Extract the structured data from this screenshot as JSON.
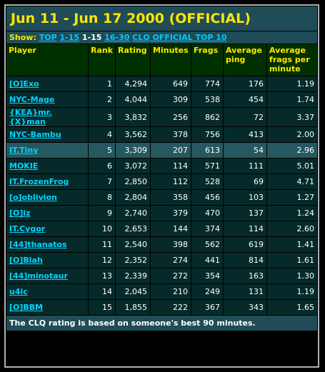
{
  "title": "Jun 11 - Jun 17 2000 (OFFICIAL)",
  "show": {
    "label": "Show:",
    "links": [
      "TOP",
      "1-15",
      "1-15",
      "16-30",
      "CLQ OFFICIAL TOP 10"
    ]
  },
  "columns": [
    "Player",
    "Rank",
    "Rating",
    "Minutes",
    "Frags",
    "Average ping",
    "Average frags per minute"
  ],
  "rows": [
    {
      "player": "[O]Exo",
      "rank": "1",
      "rating": "4,294",
      "minutes": "649",
      "frags": "774",
      "ping": "176",
      "fpm": "1.19"
    },
    {
      "player": "NYC-Mage",
      "rank": "2",
      "rating": "4,044",
      "minutes": "309",
      "frags": "538",
      "ping": "454",
      "fpm": "1.74"
    },
    {
      "player": "{KEA}mr.{X}man",
      "rank": "3",
      "rating": "3,832",
      "minutes": "256",
      "frags": "862",
      "ping": "72",
      "fpm": "3.37"
    },
    {
      "player": "NYC-Bambu",
      "rank": "4",
      "rating": "3,562",
      "minutes": "378",
      "frags": "756",
      "ping": "413",
      "fpm": "2.00"
    },
    {
      "player": "IT.Tiny",
      "rank": "5",
      "rating": "3,309",
      "minutes": "207",
      "frags": "613",
      "ping": "54",
      "fpm": "2.96"
    },
    {
      "player": "MOKIE",
      "rank": "6",
      "rating": "3,072",
      "minutes": "114",
      "frags": "571",
      "ping": "111",
      "fpm": "5.01"
    },
    {
      "player": "IT.FrozenFrog",
      "rank": "7",
      "rating": "2,850",
      "minutes": "112",
      "frags": "528",
      "ping": "69",
      "fpm": "4.71"
    },
    {
      "player": "[o]oblivion",
      "rank": "8",
      "rating": "2,804",
      "minutes": "358",
      "frags": "456",
      "ping": "103",
      "fpm": "1.27"
    },
    {
      "player": "[O]iz",
      "rank": "9",
      "rating": "2,740",
      "minutes": "379",
      "frags": "470",
      "ping": "137",
      "fpm": "1.24"
    },
    {
      "player": "IT.Cygor",
      "rank": "10",
      "rating": "2,653",
      "minutes": "144",
      "frags": "374",
      "ping": "114",
      "fpm": "2.60"
    },
    {
      "player": "[44]thanatos",
      "rank": "11",
      "rating": "2,540",
      "minutes": "398",
      "frags": "562",
      "ping": "619",
      "fpm": "1.41"
    },
    {
      "player": "[O]Blah",
      "rank": "12",
      "rating": "2,352",
      "minutes": "274",
      "frags": "441",
      "ping": "814",
      "fpm": "1.61"
    },
    {
      "player": "[44]minotaur",
      "rank": "13",
      "rating": "2,339",
      "minutes": "272",
      "frags": "354",
      "ping": "163",
      "fpm": "1.30"
    },
    {
      "player": "u4ic",
      "rank": "14",
      "rating": "2,045",
      "minutes": "210",
      "frags": "249",
      "ping": "131",
      "fpm": "1.19"
    },
    {
      "player": "[O]BBM",
      "rank": "15",
      "rating": "1,855",
      "minutes": "222",
      "frags": "367",
      "ping": "343",
      "fpm": "1.65"
    }
  ],
  "highlight_row": "IT.Tiny",
  "footer": "The CLQ rating is based on someone's best 90 minutes.",
  "colors": {
    "title": "#ffe600",
    "link": "#00d4ff",
    "header_bg": "#003000",
    "row_bg": "#062a2a",
    "highlight_bg": "#25595f"
  }
}
